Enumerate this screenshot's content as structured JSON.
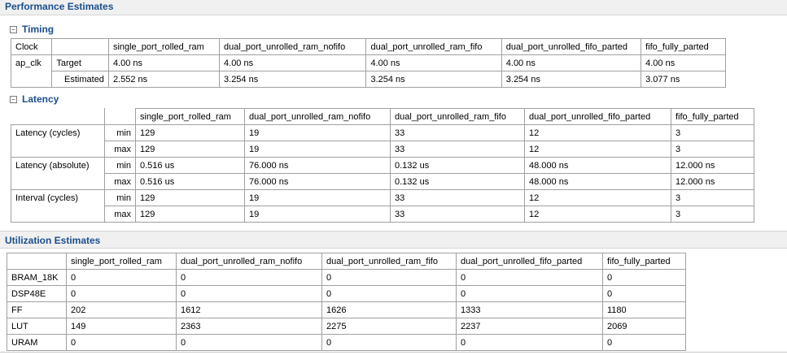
{
  "performance": {
    "title": "Performance Estimates",
    "timing": {
      "title": "Timing",
      "corner": "Clock",
      "columns": [
        "single_port_rolled_ram",
        "dual_port_unrolled_ram_nofifo",
        "dual_port_unrolled_ram_fifo",
        "dual_port_unrolled_fifo_parted",
        "fifo_fully_parted"
      ],
      "clock": "ap_clk",
      "rows": [
        {
          "label": "Target",
          "values": [
            "4.00 ns",
            "4.00 ns",
            "4.00 ns",
            "4.00 ns",
            "4.00 ns"
          ]
        },
        {
          "label": "Estimated",
          "values": [
            "2.552 ns",
            "3.254 ns",
            "3.254 ns",
            "3.254 ns",
            "3.077 ns"
          ]
        }
      ]
    },
    "latency": {
      "title": "Latency",
      "columns": [
        "single_port_rolled_ram",
        "dual_port_unrolled_ram_nofifo",
        "dual_port_unrolled_ram_fifo",
        "dual_port_unrolled_fifo_parted",
        "fifo_fully_parted"
      ],
      "groups": [
        {
          "label": "Latency (cycles)",
          "rows": [
            {
              "sub": "min",
              "values": [
                "129",
                "19",
                "33",
                "12",
                "3"
              ]
            },
            {
              "sub": "max",
              "values": [
                "129",
                "19",
                "33",
                "12",
                "3"
              ]
            }
          ]
        },
        {
          "label": "Latency (absolute)",
          "rows": [
            {
              "sub": "min",
              "values": [
                "0.516 us",
                "76.000 ns",
                "0.132 us",
                "48.000 ns",
                "12.000 ns"
              ]
            },
            {
              "sub": "max",
              "values": [
                "0.516 us",
                "76.000 ns",
                "0.132 us",
                "48.000 ns",
                "12.000 ns"
              ]
            }
          ]
        },
        {
          "label": "Interval (cycles)",
          "rows": [
            {
              "sub": "min",
              "values": [
                "129",
                "19",
                "33",
                "12",
                "3"
              ]
            },
            {
              "sub": "max",
              "values": [
                "129",
                "19",
                "33",
                "12",
                "3"
              ]
            }
          ]
        }
      ]
    }
  },
  "utilization": {
    "title": "Utilization Estimates",
    "columns": [
      "single_port_rolled_ram",
      "dual_port_unrolled_ram_nofifo",
      "dual_port_unrolled_ram_fifo",
      "dual_port_unrolled_fifo_parted",
      "fifo_fully_parted"
    ],
    "rows": [
      {
        "label": "BRAM_18K",
        "values": [
          "0",
          "0",
          "0",
          "0",
          "0"
        ]
      },
      {
        "label": "DSP48E",
        "values": [
          "0",
          "0",
          "0",
          "0",
          "0"
        ]
      },
      {
        "label": "FF",
        "values": [
          "202",
          "1612",
          "1626",
          "1333",
          "1180"
        ]
      },
      {
        "label": "LUT",
        "values": [
          "149",
          "2363",
          "2275",
          "2237",
          "2069"
        ]
      },
      {
        "label": "URAM",
        "values": [
          "0",
          "0",
          "0",
          "0",
          "0"
        ]
      }
    ]
  }
}
